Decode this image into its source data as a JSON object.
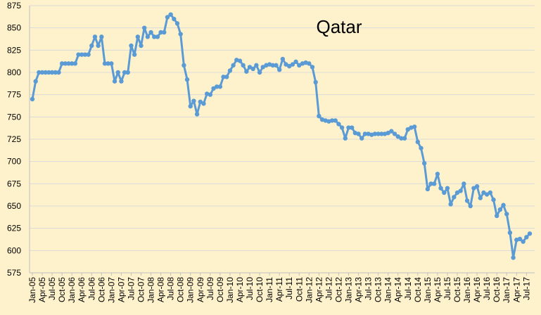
{
  "chart_data": {
    "type": "line",
    "title": "Qatar",
    "xlabel": "",
    "ylabel": "",
    "ylim": [
      575,
      875
    ],
    "yticks": [
      575,
      600,
      625,
      650,
      675,
      700,
      725,
      750,
      775,
      800,
      825,
      850,
      875
    ],
    "xticks": [
      "Jan-05",
      "Apr-05",
      "Jul-05",
      "Oct-05",
      "Jan-06",
      "Apr-06",
      "Jul-06",
      "Oct-06",
      "Jan-07",
      "Apr-07",
      "Jul-07",
      "Oct-07",
      "Jan-08",
      "Apr-08",
      "Jul-08",
      "Oct-08",
      "Jan-09",
      "Apr-09",
      "Jul-09",
      "Oct-09",
      "Jan-10",
      "Apr-10",
      "Jul-10",
      "Oct-10",
      "Jan-11",
      "Apr-11",
      "Jul-11",
      "Oct-11",
      "Jan-12",
      "Apr-12",
      "Jul-12",
      "Oct-12",
      "Jan-13",
      "Apr-13",
      "Jul-13",
      "Oct-13",
      "Jan-14",
      "Apr-14",
      "Jul-14",
      "Oct-14",
      "Jan-15",
      "Apr-15",
      "Jul-15",
      "Oct-15",
      "Jan-16",
      "Apr-16",
      "Jul-16",
      "Oct-16",
      "Jan-17",
      "Apr-17",
      "Jul-17"
    ],
    "grid": "horizontal",
    "legend": "none",
    "line_color": "#5b9bd5",
    "background_color": "#fef2cc",
    "x_start": "2005-01",
    "frequency": "monthly",
    "values": [
      770,
      790,
      800,
      800,
      800,
      800,
      800,
      800,
      800,
      810,
      810,
      810,
      810,
      810,
      820,
      820,
      820,
      820,
      830,
      840,
      830,
      840,
      810,
      810,
      810,
      790,
      800,
      790,
      800,
      800,
      830,
      820,
      840,
      830,
      850,
      840,
      845,
      840,
      840,
      845,
      845,
      862,
      865,
      860,
      855,
      843,
      808,
      792,
      762,
      768,
      753,
      767,
      765,
      776,
      775,
      782,
      784,
      784,
      795,
      795,
      802,
      808,
      814,
      813,
      808,
      801,
      806,
      804,
      808,
      800,
      806,
      808,
      809,
      808,
      808,
      803,
      815,
      809,
      807,
      809,
      812,
      808,
      810,
      811,
      810,
      806,
      789,
      751,
      747,
      746,
      745,
      746,
      746,
      742,
      738,
      726,
      738,
      738,
      732,
      731,
      726,
      731,
      731,
      730,
      731,
      731,
      731,
      731,
      732,
      734,
      731,
      728,
      726,
      726,
      736,
      738,
      739,
      722,
      715,
      698,
      669,
      675,
      675,
      686,
      670,
      665,
      670,
      652,
      660,
      665,
      667,
      675,
      656,
      650,
      670,
      672,
      659,
      665,
      663,
      665,
      657,
      639,
      646,
      651,
      641,
      620,
      592,
      612,
      613,
      610,
      615,
      619
    ]
  }
}
